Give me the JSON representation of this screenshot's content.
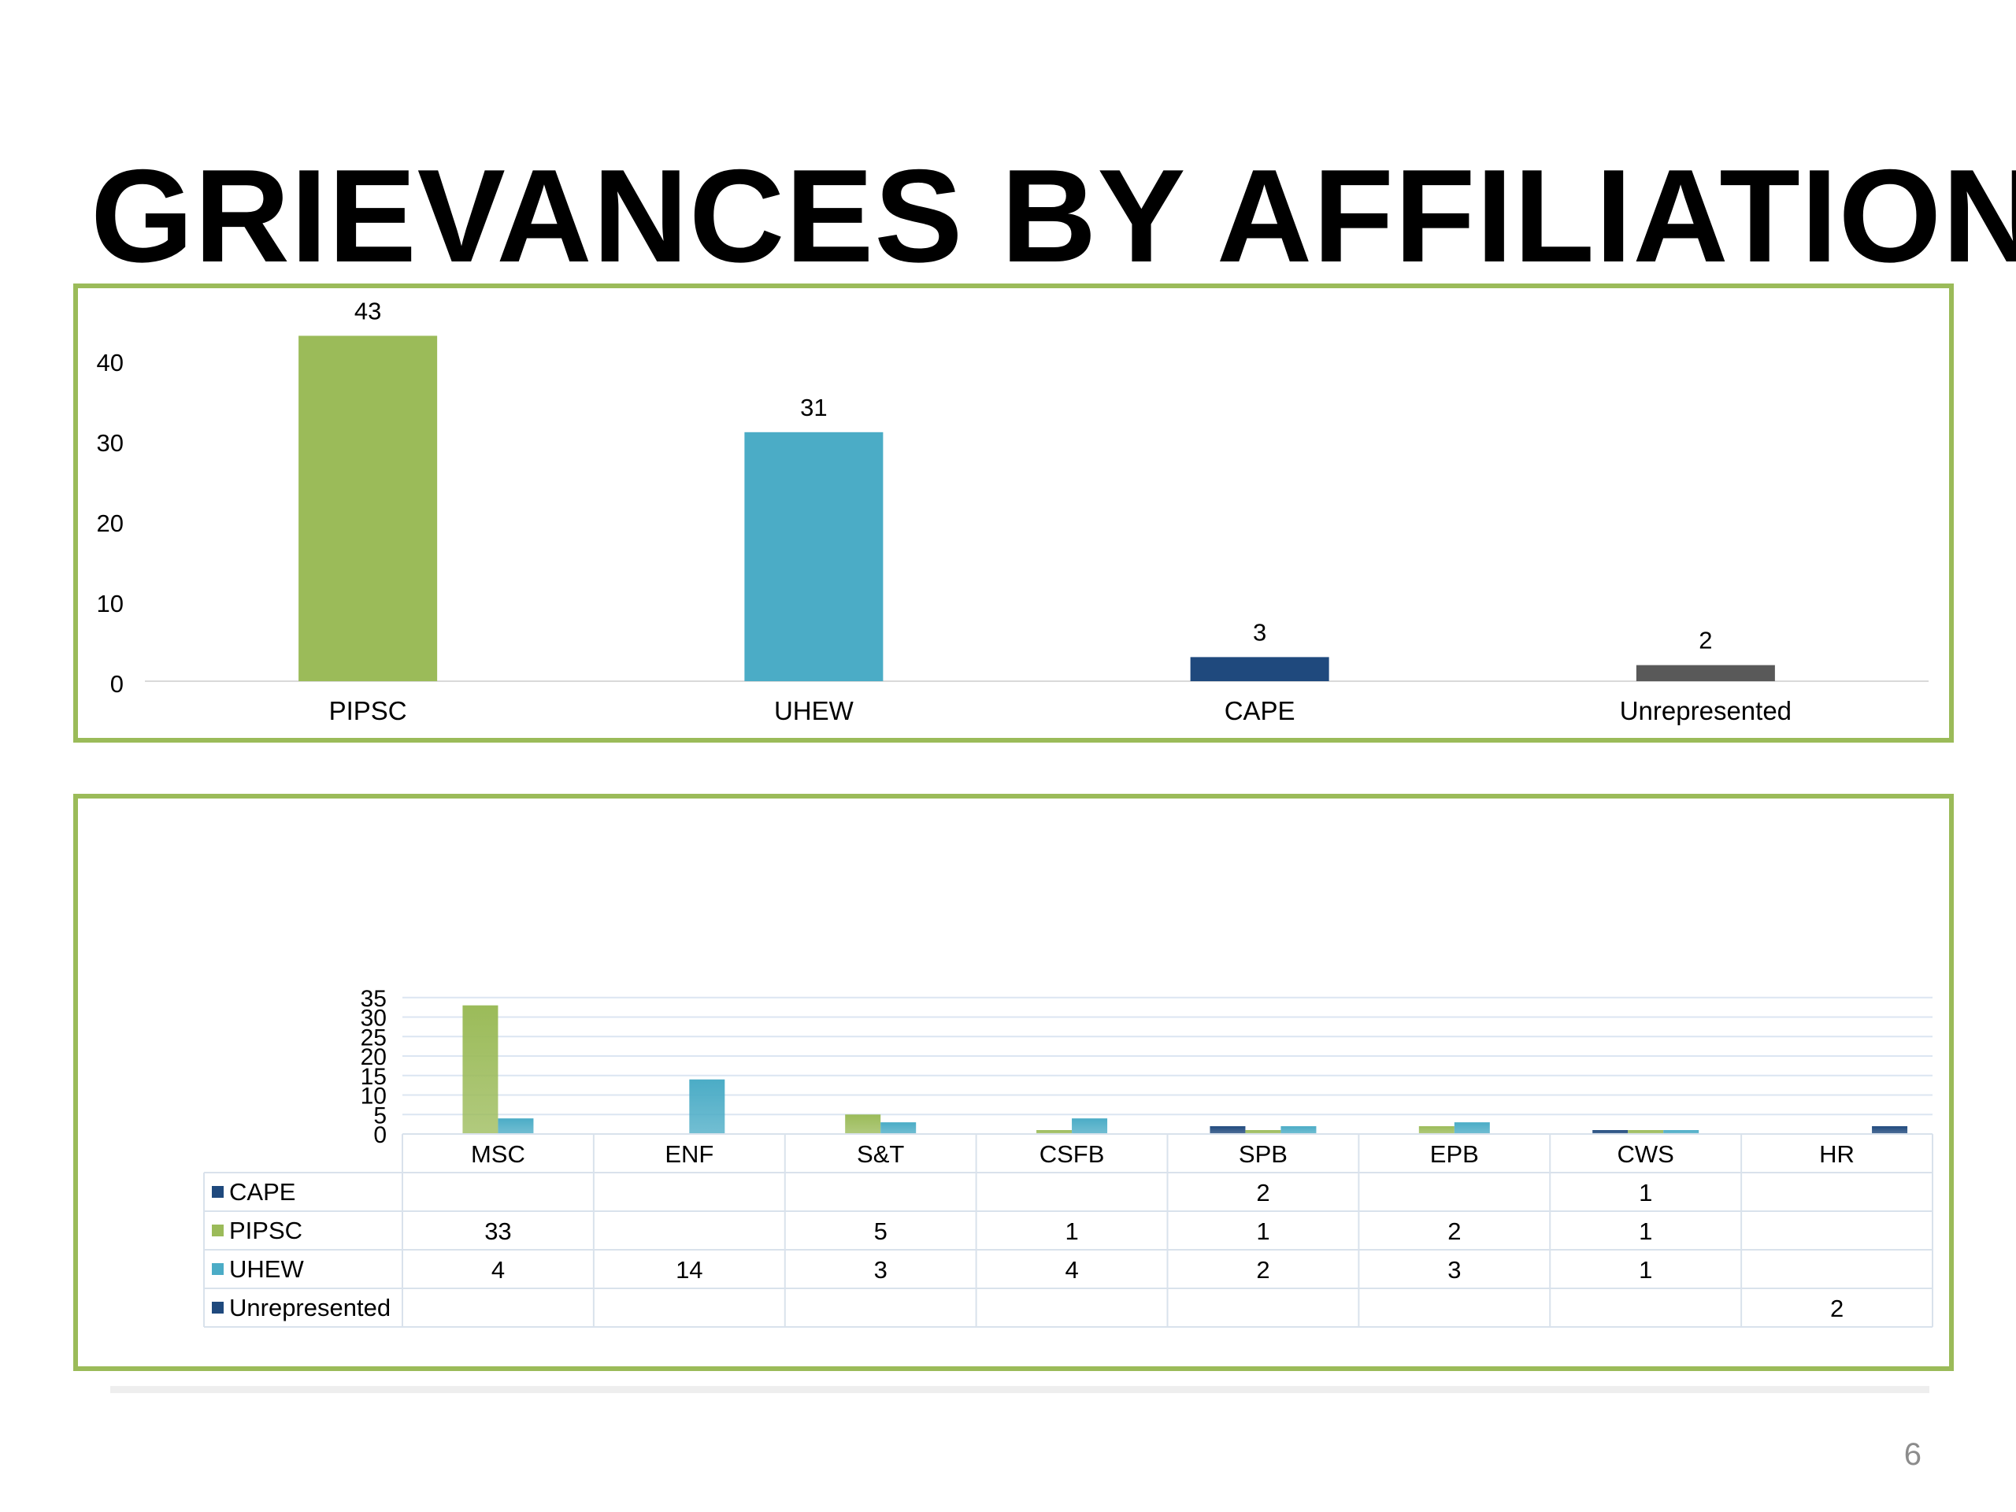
{
  "slide": {
    "title": "GRIEVANCES BY AFFILIATION",
    "page_number": "6",
    "panel_border_color": "#9bbb59"
  },
  "chart_data": [
    {
      "type": "bar",
      "categories": [
        "PIPSC",
        "UHEW",
        "CAPE",
        "Unrepresented"
      ],
      "values": [
        43,
        31,
        3,
        2
      ],
      "colors": [
        "#9bbb59",
        "#4bacc6",
        "#1f497d",
        "#595959"
      ],
      "data_labels": [
        "43",
        "31",
        "3",
        "2"
      ],
      "yticks": [
        0,
        10,
        20,
        30,
        40
      ],
      "ylim": [
        0,
        43
      ],
      "grid": false,
      "legend": "none"
    },
    {
      "type": "bar",
      "categories": [
        "MSC",
        "ENF",
        "S&T",
        "CSFB",
        "SPB",
        "EPB",
        "CWS",
        "HR"
      ],
      "series": [
        {
          "name": "CAPE",
          "color": "#1f497d",
          "values": [
            null,
            null,
            null,
            null,
            2,
            null,
            1,
            null
          ]
        },
        {
          "name": "PIPSC",
          "color": "#9bbb59",
          "values": [
            33,
            null,
            5,
            1,
            1,
            2,
            1,
            null
          ]
        },
        {
          "name": "UHEW",
          "color": "#4bacc6",
          "values": [
            4,
            14,
            3,
            4,
            2,
            3,
            1,
            null
          ]
        },
        {
          "name": "Unrepresented",
          "color": "#1f497d",
          "values": [
            null,
            null,
            null,
            null,
            null,
            null,
            null,
            2
          ]
        }
      ],
      "yticks": [
        0,
        5,
        10,
        15,
        20,
        25,
        30,
        35
      ],
      "ylim": [
        0,
        35
      ],
      "grid": true,
      "legend": "data-table"
    }
  ]
}
